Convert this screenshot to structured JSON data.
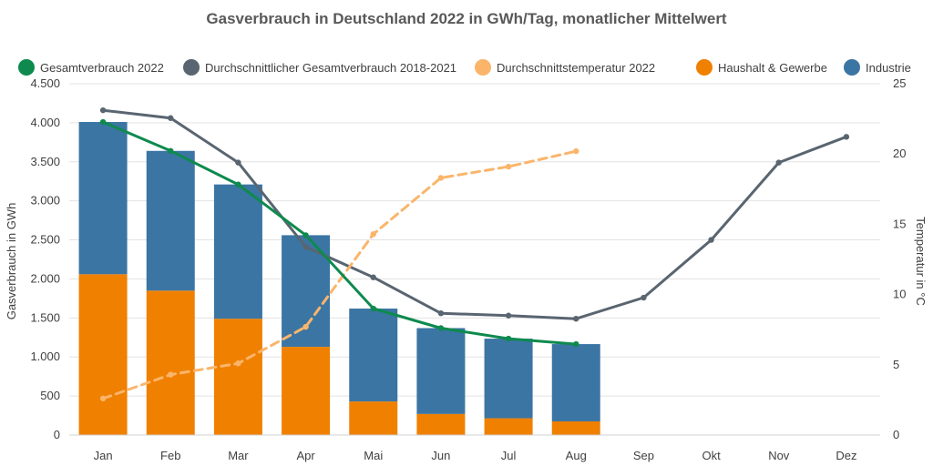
{
  "chart_data": {
    "type": "bar",
    "title": "Gasverbrauch in Deutschland 2022 in GWh/Tag, monatlicher Mittelwert",
    "categories": [
      "Jan",
      "Feb",
      "Mar",
      "Apr",
      "Mai",
      "Jun",
      "Jul",
      "Aug",
      "Sep",
      "Okt",
      "Nov",
      "Dez"
    ],
    "ylabel": "Gasverbrauch in GWh",
    "y2label": "Temperatur in °C",
    "ylim": [
      0,
      4500
    ],
    "y2lim": [
      0,
      25
    ],
    "yticks": [
      {
        "value": 0,
        "label": "0"
      },
      {
        "value": 500,
        "label": "500"
      },
      {
        "value": 1000,
        "label": "1.000"
      },
      {
        "value": 1500,
        "label": "1.500"
      },
      {
        "value": 2000,
        "label": "2.000"
      },
      {
        "value": 2500,
        "label": "2.500"
      },
      {
        "value": 3000,
        "label": "3.000"
      },
      {
        "value": 3500,
        "label": "3.500"
      },
      {
        "value": 4000,
        "label": "4.000"
      },
      {
        "value": 4500,
        "label": "4.500"
      }
    ],
    "y2ticks": [
      {
        "value": 0,
        "label": "0"
      },
      {
        "value": 5,
        "label": "5"
      },
      {
        "value": 10,
        "label": "10"
      },
      {
        "value": 15,
        "label": "15"
      },
      {
        "value": 20,
        "label": "20"
      },
      {
        "value": 25,
        "label": "25"
      }
    ],
    "grid": true,
    "legend_position": "top",
    "stacked_bars": [
      {
        "name": "Haushalt & Gewerbe",
        "color": "#F08000",
        "values": [
          2060,
          1850,
          1490,
          1130,
          430,
          270,
          215,
          175,
          null,
          null,
          null,
          null
        ]
      },
      {
        "name": "Industrie",
        "color": "#3B75A3",
        "values": [
          1950,
          1790,
          1720,
          1430,
          1190,
          1100,
          1020,
          990,
          null,
          null,
          null,
          null
        ]
      }
    ],
    "lines": [
      {
        "name": "Gesamtverbrauch 2022",
        "color": "#0E8A4E",
        "dashed": false,
        "axis": "left",
        "values": [
          4010,
          3640,
          3210,
          2560,
          1620,
          1370,
          1235,
          1165,
          null,
          null,
          null,
          null
        ]
      },
      {
        "name": "Durchschnittlicher Gesamtverbrauch 2018-2021",
        "color": "#596570",
        "dashed": false,
        "axis": "left",
        "values": [
          4160,
          4060,
          3490,
          2410,
          2020,
          1560,
          1530,
          1490,
          1760,
          2500,
          3490,
          3820
        ]
      },
      {
        "name": "Durchschnittstemperatur 2022",
        "color": "#FAB56B",
        "dashed": true,
        "axis": "right",
        "values": [
          2.6,
          4.3,
          5.1,
          7.7,
          14.3,
          18.3,
          19.1,
          20.2,
          null,
          null,
          null,
          null
        ]
      }
    ],
    "legend": [
      {
        "name": "Gesamtverbrauch 2022",
        "color": "#0E8A4E"
      },
      {
        "name": "Durchschnittlicher Gesamtverbrauch 2018-2021",
        "color": "#596570"
      },
      {
        "name": "Durchschnittstemperatur 2022",
        "color": "#FAB56B"
      },
      {
        "name": "Haushalt & Gewerbe",
        "color": "#F08000"
      },
      {
        "name": "Industrie",
        "color": "#3B75A3"
      }
    ]
  }
}
